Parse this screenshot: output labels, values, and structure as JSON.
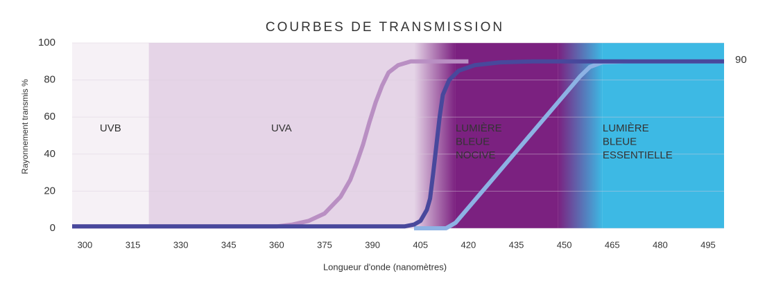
{
  "chart_data": {
    "type": "line",
    "title": "COURBES DE TRANSMISSION",
    "x_label": "Longueur d'onde (nanomètres)",
    "y_label": "Rayonnement transmis %",
    "xlim": [
      296,
      500
    ],
    "xticks": [
      300,
      315,
      330,
      345,
      360,
      375,
      390,
      405,
      420,
      435,
      450,
      465,
      480,
      495
    ],
    "ylim": [
      0,
      100
    ],
    "yticks": [
      0,
      20,
      40,
      60,
      80,
      100
    ],
    "grid": true,
    "annotation_value": 90,
    "regions": [
      {
        "lines": [
          "UVB"
        ],
        "start": 296,
        "end": 320,
        "color": "#f6f1f6",
        "label_color": "#222222"
      },
      {
        "lines": [
          "UVA"
        ],
        "start": 320,
        "end": 403,
        "color": "#e5d4e7",
        "label_color": "#222222"
      },
      {
        "lines": [
          "LUMIÈRE",
          "BLEUE",
          "NOCIVE"
        ],
        "start": 416,
        "end": 448,
        "color": "#7b2180",
        "label_color": "#ffffff"
      },
      {
        "lines": [
          "LUMIÈRE",
          "BLEUE",
          "ESSENTIELLE"
        ],
        "start": 462,
        "end": 500,
        "color": "#3db9e4",
        "label_color": "#ffffff"
      }
    ],
    "series": [
      {
        "color": "#b98fc3",
        "x": [
          296,
          360,
          365,
          370,
          375,
          380,
          383,
          385,
          387,
          389,
          391,
          393,
          395,
          398,
          402,
          420
        ],
        "values": [
          1,
          1,
          2,
          4,
          8,
          17,
          26,
          35,
          45,
          57,
          68,
          77,
          84,
          88,
          90,
          90
        ]
      },
      {
        "color": "#8db2e4",
        "x": [
          403,
          413,
          416,
          455,
          458,
          462,
          470,
          500
        ],
        "values": [
          0,
          0,
          3,
          82,
          87,
          89.5,
          90,
          90
        ]
      },
      {
        "color": "#48489c",
        "x": [
          296,
          400,
          403,
          405,
          407,
          408,
          409,
          410,
          411,
          412,
          414,
          417,
          422,
          430,
          440,
          500
        ],
        "values": [
          1,
          1,
          2,
          4,
          10,
          16,
          30,
          45,
          60,
          72,
          80,
          85,
          88,
          89.5,
          90,
          90
        ]
      }
    ]
  }
}
